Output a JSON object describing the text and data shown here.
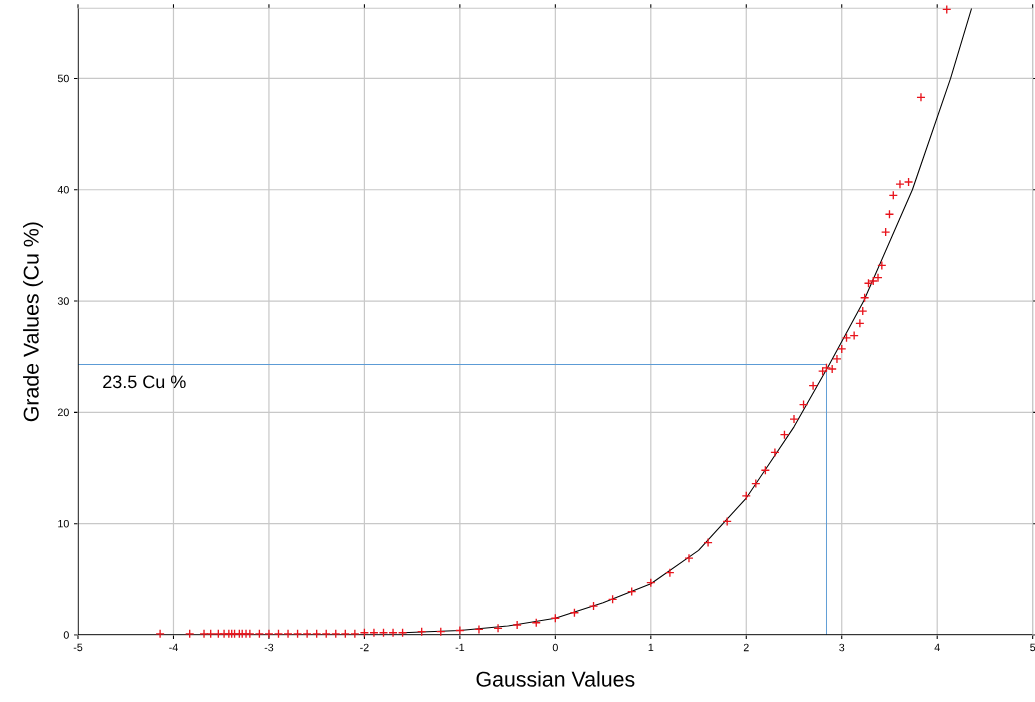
{
  "chart_data": {
    "type": "scatter",
    "xlabel": "Gaussian Values",
    "ylabel": "Grade Values (Cu %)",
    "xlim": [
      -5,
      5
    ],
    "ylim": [
      0,
      56.3
    ],
    "xticks": [
      -5,
      -4,
      -3,
      -2,
      -1,
      0,
      1,
      2,
      3,
      4,
      5
    ],
    "yticks": [
      0,
      10,
      20,
      30,
      40,
      50
    ],
    "grid": true,
    "marker": "cross",
    "series": [
      {
        "color": "#e8141c",
        "x": [
          -4.14,
          -3.83,
          -3.68,
          -3.61,
          -3.53,
          -3.47,
          -3.42,
          -3.39,
          -3.36,
          -3.31,
          -3.28,
          -3.24,
          -3.2,
          -3.1,
          -3.0,
          -2.9,
          -2.8,
          -2.7,
          -2.6,
          -2.5,
          -2.4,
          -2.3,
          -2.2,
          -2.1,
          -2.0,
          -1.9,
          -1.8,
          -1.7,
          -1.6,
          -1.4,
          -1.2,
          -1.0,
          -0.8,
          -0.6,
          -0.4,
          -0.2,
          0.0,
          0.2,
          0.4,
          0.6,
          0.8,
          1.0,
          1.2,
          1.4,
          1.6,
          1.8,
          2.0,
          2.1,
          2.2,
          2.3,
          2.4,
          2.5,
          2.6,
          2.7,
          2.8,
          2.84,
          2.9,
          2.95,
          3.0,
          3.05,
          3.13,
          3.19,
          3.22,
          3.24,
          3.28,
          3.33,
          3.38,
          3.42,
          3.46,
          3.5,
          3.54,
          3.61,
          3.7,
          3.83,
          4.1
        ],
        "values": [
          0.1,
          0.1,
          0.1,
          0.1,
          0.1,
          0.1,
          0.1,
          0.1,
          0.1,
          0.1,
          0.1,
          0.1,
          0.1,
          0.1,
          0.1,
          0.1,
          0.1,
          0.1,
          0.1,
          0.1,
          0.1,
          0.1,
          0.1,
          0.1,
          0.2,
          0.2,
          0.2,
          0.2,
          0.2,
          0.3,
          0.3,
          0.4,
          0.5,
          0.6,
          0.9,
          1.1,
          1.5,
          2.0,
          2.6,
          3.2,
          3.9,
          4.7,
          5.6,
          6.9,
          8.3,
          10.2,
          12.5,
          13.6,
          14.8,
          16.4,
          18.0,
          19.4,
          20.7,
          22.4,
          23.7,
          24.0,
          23.9,
          24.8,
          25.7,
          26.7,
          26.9,
          28.0,
          29.1,
          30.3,
          31.6,
          31.8,
          32.1,
          33.2,
          36.2,
          37.8,
          39.5,
          40.5,
          40.7,
          48.3,
          56.2
        ]
      },
      {
        "type": "line",
        "color": "#000000",
        "marker": "none",
        "x": [
          -1.6,
          -1.0,
          -0.5,
          0.0,
          0.5,
          1.0,
          1.5,
          2.0,
          2.5,
          2.87,
          3.23,
          3.74,
          4.14,
          4.36
        ],
        "values": [
          0.2,
          0.4,
          0.8,
          1.5,
          2.9,
          4.6,
          7.6,
          12.3,
          18.7,
          24.3,
          30.0,
          40.0,
          50.0,
          56.3
        ]
      }
    ],
    "ref_lines": [
      {
        "axis": "y",
        "value": 24.3,
        "label": "23.5 Cu %",
        "color": "#5b9bd5"
      },
      {
        "axis": "x",
        "value": 2.84,
        "color": "#5b9bd5"
      }
    ]
  }
}
